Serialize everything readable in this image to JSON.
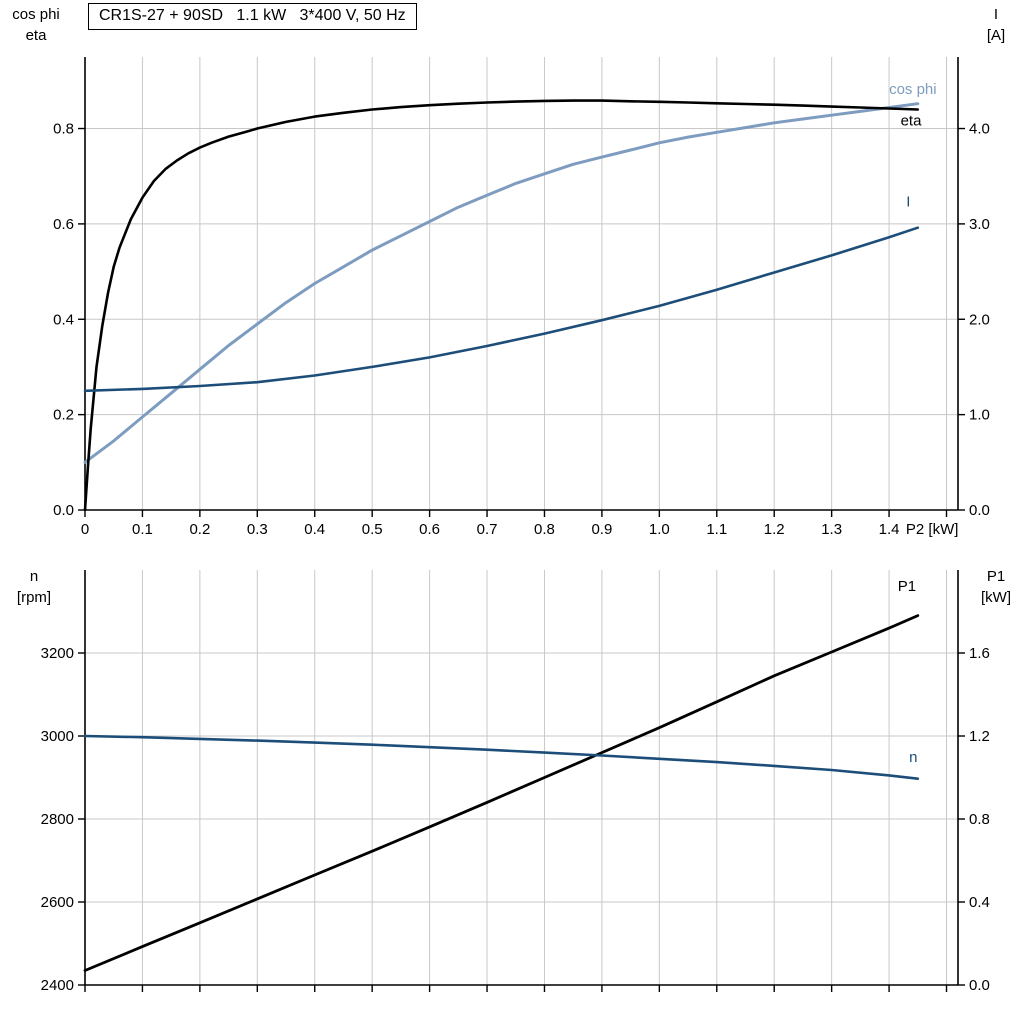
{
  "colors": {
    "grid": "#c8c8c8",
    "axis": "#000000",
    "eta": "#000000",
    "cos_phi": "#7e9cbf",
    "current": "#1d4e79",
    "p1": "#000000",
    "n": "#1d4e79"
  },
  "chart_data": [
    {
      "type": "line",
      "title": "CR1S-27 + 90SD   1.1 kW   3*400 V, 50 Hz",
      "x_axis": {
        "range": [
          0,
          1.52
        ],
        "grid_values": [
          0,
          0.1,
          0.2,
          0.3,
          0.4,
          0.5,
          0.6,
          0.7,
          0.8,
          0.9,
          1.0,
          1.1,
          1.2,
          1.3,
          1.4,
          1.5
        ],
        "tick_labels": [
          "0",
          "0.1",
          "0.2",
          "0.3",
          "0.4",
          "0.5",
          "0.6",
          "0.7",
          "0.8",
          "0.9",
          "1.0",
          "1.1",
          "1.2",
          "1.3",
          "1.4"
        ],
        "label": "P2 [kW]",
        "label_x": 1.475
      },
      "left_axis": {
        "title_lines": [
          "cos phi",
          "eta"
        ],
        "range": [
          0,
          0.95
        ],
        "tick_values": [
          0,
          0.2,
          0.4,
          0.6,
          0.8
        ],
        "tick_labels": [
          "0.0",
          "0.2",
          "0.4",
          "0.6",
          "0.8"
        ],
        "grid_values": [
          0.2,
          0.4,
          0.6,
          0.8
        ]
      },
      "right_axis": {
        "title_lines": [
          "I",
          "[A]"
        ],
        "range": [
          0,
          4.75
        ],
        "tick_values": [
          0,
          1,
          2,
          3,
          4
        ],
        "tick_labels": [
          "0.0",
          "1.0",
          "2.0",
          "3.0",
          "4.0"
        ],
        "grid_values": []
      },
      "series": [
        {
          "name": "cos phi",
          "axis": "left",
          "color": "#7e9cbf",
          "width": 3,
          "label": {
            "text": "cos phi",
            "x": 1.4,
            "y": 0.872,
            "anchor": "start"
          },
          "points": [
            [
              0,
              0.1
            ],
            [
              0.05,
              0.145
            ],
            [
              0.1,
              0.195
            ],
            [
              0.15,
              0.245
            ],
            [
              0.2,
              0.295
            ],
            [
              0.25,
              0.345
            ],
            [
              0.3,
              0.39
            ],
            [
              0.35,
              0.435
            ],
            [
              0.4,
              0.475
            ],
            [
              0.45,
              0.51
            ],
            [
              0.5,
              0.545
            ],
            [
              0.55,
              0.575
            ],
            [
              0.6,
              0.605
            ],
            [
              0.65,
              0.635
            ],
            [
              0.7,
              0.66
            ],
            [
              0.75,
              0.685
            ],
            [
              0.8,
              0.705
            ],
            [
              0.85,
              0.725
            ],
            [
              0.9,
              0.74
            ],
            [
              0.95,
              0.755
            ],
            [
              1.0,
              0.77
            ],
            [
              1.05,
              0.782
            ],
            [
              1.1,
              0.792
            ],
            [
              1.15,
              0.802
            ],
            [
              1.2,
              0.812
            ],
            [
              1.25,
              0.82
            ],
            [
              1.3,
              0.828
            ],
            [
              1.35,
              0.836
            ],
            [
              1.4,
              0.844
            ],
            [
              1.45,
              0.852
            ]
          ]
        },
        {
          "name": "eta",
          "axis": "left",
          "color": "#000000",
          "width": 2.6,
          "label": {
            "text": "eta",
            "x": 1.42,
            "y": 0.806,
            "anchor": "start"
          },
          "points": [
            [
              0,
              0
            ],
            [
              0.005,
              0.09
            ],
            [
              0.01,
              0.17
            ],
            [
              0.015,
              0.235
            ],
            [
              0.02,
              0.3
            ],
            [
              0.03,
              0.385
            ],
            [
              0.04,
              0.455
            ],
            [
              0.05,
              0.51
            ],
            [
              0.06,
              0.55
            ],
            [
              0.08,
              0.61
            ],
            [
              0.1,
              0.655
            ],
            [
              0.12,
              0.69
            ],
            [
              0.14,
              0.715
            ],
            [
              0.16,
              0.733
            ],
            [
              0.18,
              0.748
            ],
            [
              0.2,
              0.76
            ],
            [
              0.22,
              0.77
            ],
            [
              0.25,
              0.783
            ],
            [
              0.28,
              0.793
            ],
            [
              0.3,
              0.8
            ],
            [
              0.35,
              0.814
            ],
            [
              0.4,
              0.825
            ],
            [
              0.45,
              0.833
            ],
            [
              0.5,
              0.84
            ],
            [
              0.55,
              0.845
            ],
            [
              0.6,
              0.849
            ],
            [
              0.65,
              0.852
            ],
            [
              0.7,
              0.8545
            ],
            [
              0.75,
              0.8565
            ],
            [
              0.8,
              0.858
            ],
            [
              0.85,
              0.8585
            ],
            [
              0.9,
              0.8585
            ],
            [
              0.95,
              0.857
            ],
            [
              1.0,
              0.856
            ],
            [
              1.05,
              0.8545
            ],
            [
              1.1,
              0.853
            ],
            [
              1.15,
              0.8515
            ],
            [
              1.2,
              0.85
            ],
            [
              1.25,
              0.848
            ],
            [
              1.3,
              0.846
            ],
            [
              1.35,
              0.844
            ],
            [
              1.4,
              0.842
            ],
            [
              1.45,
              0.84
            ]
          ]
        },
        {
          "name": "I",
          "axis": "right",
          "color": "#1d4e79",
          "width": 2.6,
          "label": {
            "text": "I",
            "x": 1.43,
            "y": 3.18,
            "anchor": "start"
          },
          "points": [
            [
              0,
              1.25
            ],
            [
              0.1,
              1.27
            ],
            [
              0.2,
              1.3
            ],
            [
              0.3,
              1.34
            ],
            [
              0.4,
              1.41
            ],
            [
              0.5,
              1.5
            ],
            [
              0.6,
              1.6
            ],
            [
              0.7,
              1.72
            ],
            [
              0.8,
              1.85
            ],
            [
              0.9,
              1.99
            ],
            [
              1.0,
              2.14
            ],
            [
              1.1,
              2.31
            ],
            [
              1.2,
              2.49
            ],
            [
              1.3,
              2.67
            ],
            [
              1.4,
              2.86
            ],
            [
              1.45,
              2.96
            ]
          ]
        }
      ]
    },
    {
      "type": "line",
      "title": "",
      "x_axis": {
        "range": [
          0,
          1.52
        ],
        "grid_values": [
          0,
          0.1,
          0.2,
          0.3,
          0.4,
          0.5,
          0.6,
          0.7,
          0.8,
          0.9,
          1.0,
          1.1,
          1.2,
          1.3,
          1.4,
          1.5
        ],
        "tick_labels": [],
        "label": "",
        "label_x": null
      },
      "left_axis": {
        "title_lines": [
          "n",
          "[rpm]"
        ],
        "range": [
          2400,
          3400
        ],
        "tick_values": [
          2400,
          2600,
          2800,
          3000,
          3200
        ],
        "tick_labels": [
          "2400",
          "2600",
          "2800",
          "3000",
          "3200"
        ],
        "grid_values": [
          2600,
          2800,
          3000,
          3200
        ]
      },
      "right_axis": {
        "title_lines": [
          "P1",
          "[kW]"
        ],
        "range": [
          0,
          2.0
        ],
        "tick_values": [
          0,
          0.4,
          0.8,
          1.2,
          1.6
        ],
        "tick_labels": [
          "0.0",
          "0.4",
          "0.8",
          "1.2",
          "1.6"
        ],
        "grid_values": []
      },
      "series": [
        {
          "name": "P1",
          "axis": "right",
          "color": "#000000",
          "width": 2.8,
          "label": {
            "text": "P1",
            "x": 1.415,
            "y": 1.9,
            "anchor": "start"
          },
          "points": [
            [
              0,
              0.07
            ],
            [
              0.1,
              0.185
            ],
            [
              0.2,
              0.3
            ],
            [
              0.3,
              0.415
            ],
            [
              0.4,
              0.53
            ],
            [
              0.5,
              0.645
            ],
            [
              0.6,
              0.762
            ],
            [
              0.7,
              0.88
            ],
            [
              0.8,
              1.0
            ],
            [
              0.9,
              1.12
            ],
            [
              1.0,
              1.24
            ],
            [
              1.1,
              1.365
            ],
            [
              1.2,
              1.49
            ],
            [
              1.3,
              1.605
            ],
            [
              1.4,
              1.72
            ],
            [
              1.45,
              1.78
            ]
          ]
        },
        {
          "name": "n",
          "axis": "left",
          "color": "#1d4e79",
          "width": 2.6,
          "label": {
            "text": "n",
            "x": 1.435,
            "y": 2937,
            "anchor": "start"
          },
          "points": [
            [
              0,
              3000
            ],
            [
              0.1,
              2997
            ],
            [
              0.2,
              2993
            ],
            [
              0.3,
              2989
            ],
            [
              0.4,
              2984
            ],
            [
              0.5,
              2979
            ],
            [
              0.6,
              2973
            ],
            [
              0.7,
              2967
            ],
            [
              0.8,
              2960
            ],
            [
              0.9,
              2953
            ],
            [
              1.0,
              2945
            ],
            [
              1.1,
              2937
            ],
            [
              1.2,
              2928
            ],
            [
              1.3,
              2918
            ],
            [
              1.4,
              2905
            ],
            [
              1.45,
              2897
            ]
          ]
        }
      ]
    }
  ]
}
